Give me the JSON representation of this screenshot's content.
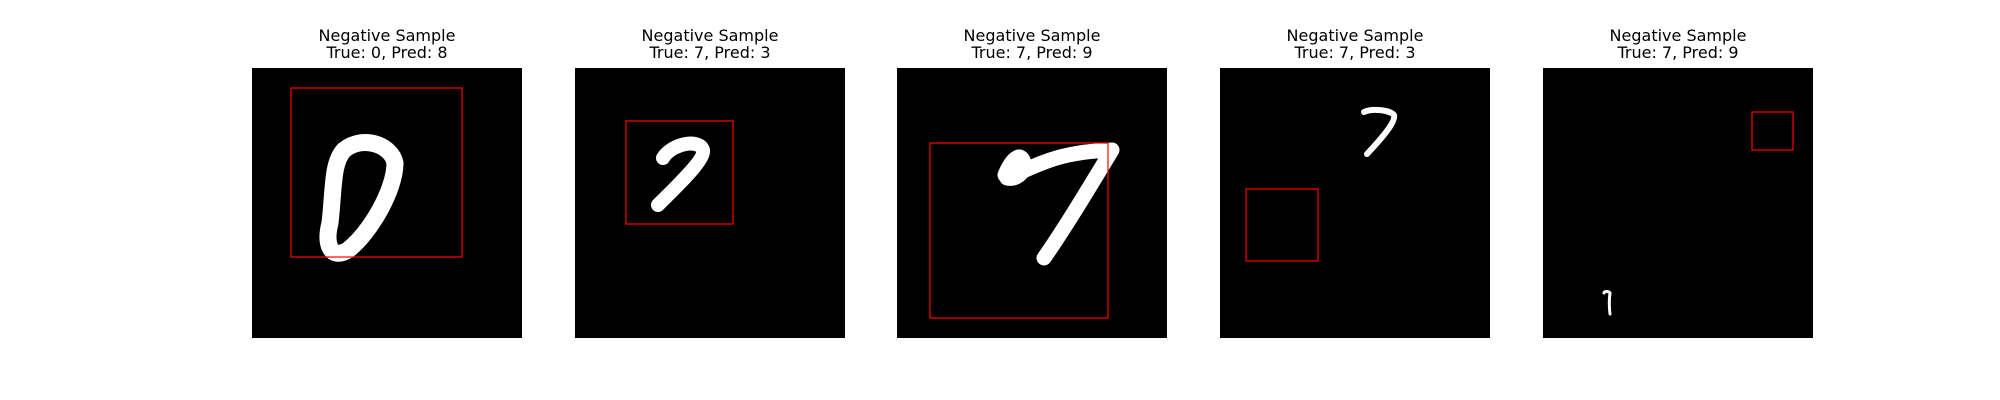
{
  "samples": [
    {
      "heading": "Negative Sample",
      "subtitle": "True: 0, Pred: 8",
      "true_label": 0,
      "pred_label": 8,
      "digit": "0"
    },
    {
      "heading": "Negative Sample",
      "subtitle": "True: 7, Pred: 3",
      "true_label": 7,
      "pred_label": 3,
      "digit": "7"
    },
    {
      "heading": "Negative Sample",
      "subtitle": "True: 7, Pred: 9",
      "true_label": 7,
      "pred_label": 9,
      "digit": "7"
    },
    {
      "heading": "Negative Sample",
      "subtitle": "True: 7, Pred: 3",
      "true_label": 7,
      "pred_label": 3,
      "digit": "7"
    },
    {
      "heading": "Negative Sample",
      "subtitle": "True: 7, Pred: 9",
      "true_label": 7,
      "pred_label": 9,
      "digit": "7"
    }
  ],
  "colors": {
    "image_background": "#000000",
    "digit_stroke": "#ffffff",
    "bounding_box": "#ff0000",
    "page_background": "#ffffff"
  }
}
